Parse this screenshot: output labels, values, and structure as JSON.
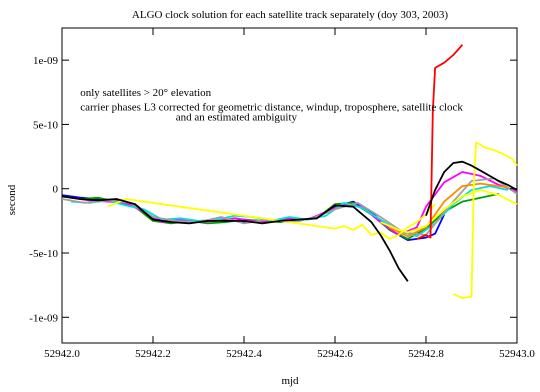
{
  "chart_data": {
    "type": "line",
    "title": "ALGO clock solution for each satellite track separately (doy 303, 2003)",
    "xlabel": "mjd",
    "ylabel": "second",
    "xlim": [
      52942.0,
      52943.0
    ],
    "ylim": [
      -1.2e-09,
      1.25e-09
    ],
    "x_ticks": [
      {
        "value": 52942.0,
        "label": "52942.0"
      },
      {
        "value": 52942.2,
        "label": "52942.2"
      },
      {
        "value": 52942.4,
        "label": "52942.4"
      },
      {
        "value": 52942.6,
        "label": "52942.6"
      },
      {
        "value": 52942.8,
        "label": "52942.8"
      },
      {
        "value": 52943.0,
        "label": "52943.0"
      }
    ],
    "y_ticks": [
      {
        "value": 1e-09,
        "label": "1e-09"
      },
      {
        "value": 5e-10,
        "label": "5e-10"
      },
      {
        "value": 0,
        "label": "0"
      },
      {
        "value": -5e-10,
        "label": "-5e-10"
      },
      {
        "value": -1e-09,
        "label": "-1e-09"
      }
    ],
    "annotations": [
      {
        "text": "only satellites > 20° elevation",
        "x": 52942.04,
        "y": 7.2e-10
      },
      {
        "text": "carrier phases L3 corrected for geometric distance, windup, troposphere, satellite clock",
        "x": 52942.04,
        "y": 6.1e-10
      },
      {
        "text": "and an estimated ambiguity",
        "x": 52942.25,
        "y": 5.3e-10
      }
    ],
    "series": [
      {
        "color": "#0000ff",
        "x": [
          52942.0,
          52942.04,
          52942.08,
          52942.12,
          52942.16,
          52942.2,
          52942.24,
          52942.28,
          52942.32,
          52942.36,
          52942.4,
          52942.44,
          52942.48,
          52942.52,
          52942.56,
          52942.6,
          52942.64,
          52942.68,
          52942.72,
          52942.76,
          52942.8,
          52942.82,
          52942.84
        ],
        "y": [
          -5e-11,
          -7e-11,
          -8e-11,
          -9e-11,
          -1.2e-10,
          -2.3e-10,
          -2.5e-10,
          -2.6e-10,
          -2.5e-10,
          -2.4e-10,
          -2.6e-10,
          -2.5e-10,
          -2.4e-10,
          -2.5e-10,
          -2.2e-10,
          -1.4e-10,
          -1e-10,
          -1.8e-10,
          -3.2e-10,
          -4e-10,
          -3.8e-10,
          -3.5e-10,
          -2e-10
        ]
      },
      {
        "color": "#00a000",
        "x": [
          52942.0,
          52942.04,
          52942.08,
          52942.12,
          52942.16,
          52942.2,
          52942.24,
          52942.28,
          52942.32,
          52942.36,
          52942.4,
          52942.44,
          52942.48,
          52942.52,
          52942.56,
          52942.6,
          52942.64,
          52942.68,
          52942.72,
          52942.76,
          52942.8,
          52942.84,
          52942.88,
          52942.92,
          52942.96
        ],
        "y": [
          -6e-11,
          -8e-11,
          -7e-11,
          -1e-10,
          -1.4e-10,
          -2.5e-10,
          -2.7e-10,
          -2.5e-10,
          -2.7e-10,
          -2.6e-10,
          -2.4e-10,
          -2.5e-10,
          -2.6e-10,
          -2.4e-10,
          -2.3e-10,
          -1.2e-10,
          -1.1e-10,
          -2e-10,
          -3.2e-10,
          -3.9e-10,
          -3.1e-10,
          -1.8e-10,
          -1e-10,
          -7e-11,
          -4e-11
        ]
      },
      {
        "color": "#ff00ff",
        "x": [
          52942.02,
          52942.06,
          52942.1,
          52942.14,
          52942.18,
          52942.22,
          52942.26,
          52942.3,
          52942.34,
          52942.38,
          52942.42,
          52942.46,
          52942.5,
          52942.54,
          52942.58,
          52942.62,
          52942.66,
          52942.7,
          52942.74,
          52942.78,
          52942.8,
          52942.84,
          52942.88,
          52942.92,
          52942.96,
          52943.0
        ],
        "y": [
          -7e-11,
          -9e-11,
          -1e-10,
          -1.1e-10,
          -1.8e-10,
          -2.6e-10,
          -2.4e-10,
          -2.6e-10,
          -2.5e-10,
          -2.3e-10,
          -2.5e-10,
          -2.6e-10,
          -2.3e-10,
          -2.4e-10,
          -1.8e-10,
          -1.2e-10,
          -1.4e-10,
          -2.6e-10,
          -3.6e-10,
          -3e-10,
          -1.4e-10,
          5e-11,
          1.3e-10,
          1e-10,
          3e-11,
          -2e-11
        ]
      },
      {
        "color": "#00e0e0",
        "x": [
          52942.02,
          52942.06,
          52942.1,
          52942.14,
          52942.18,
          52942.22,
          52942.26,
          52942.3,
          52942.34,
          52942.38,
          52942.42,
          52942.46,
          52942.5,
          52942.54,
          52942.58,
          52942.62,
          52942.66,
          52942.7,
          52942.74,
          52942.78,
          52942.82,
          52942.86,
          52942.9,
          52942.94,
          52942.98
        ],
        "y": [
          -1e-10,
          -1.1e-10,
          -9e-11,
          -1.3e-10,
          -1.6e-10,
          -2.4e-10,
          -2.3e-10,
          -2.5e-10,
          -2.4e-10,
          -2.1e-10,
          -2.2e-10,
          -2.5e-10,
          -2.2e-10,
          -2.4e-10,
          -2.1e-10,
          -1.1e-10,
          -1.5e-10,
          -2.4e-10,
          -3.3e-10,
          -3.7e-10,
          -2.7e-10,
          -1.2e-10,
          -1e-11,
          2e-11,
          -1e-11
        ]
      },
      {
        "color": "#a0a0a0",
        "x": [
          52942.0,
          52942.05,
          52942.1,
          52942.15,
          52942.2,
          52942.25,
          52942.3,
          52942.35,
          52942.4,
          52942.45,
          52942.5,
          52942.55,
          52942.6,
          52942.65,
          52942.7,
          52942.75,
          52942.8,
          52942.85,
          52942.9,
          52942.95,
          52943.0
        ],
        "y": [
          -8e-11,
          -1.1e-10,
          -9e-11,
          -1.1e-10,
          -2.2e-10,
          -2.5e-10,
          -2.6e-10,
          -2.2e-10,
          -2.7e-10,
          -2.4e-10,
          -2.6e-10,
          -2.3e-10,
          -1.6e-10,
          -1.1e-10,
          -2.2e-10,
          -3.4e-10,
          -3.6e-10,
          -1.4e-10,
          6e-11,
          8e-11,
          -4e-11
        ]
      },
      {
        "color": "#ff8c00",
        "x": [
          52942.72,
          52942.76,
          52942.8,
          52942.84,
          52942.88,
          52942.92,
          52942.96,
          52942.98
        ],
        "y": [
          -3e-10,
          -3.7e-10,
          -3e-10,
          -1e-10,
          2e-11,
          4e-11,
          2e-11,
          1e-11
        ]
      },
      {
        "color": "#ffff00",
        "x": [
          52942.1,
          52942.12,
          52942.14,
          52942.6,
          52942.62,
          52942.64,
          52942.66,
          52942.68,
          52942.7,
          52942.72,
          52942.74,
          52942.76,
          52942.78,
          52942.8,
          52942.82
        ],
        "y": [
          -1.4e-10,
          -1.1e-10,
          -8e-11,
          -3.1e-10,
          -2.9e-10,
          -3.2e-10,
          -2.8e-10,
          -3.6e-10,
          -3.4e-10,
          -3.9e-10,
          -3.6e-10,
          -3e-10,
          -2.6e-10,
          -2e-10,
          -1.2e-10
        ]
      },
      {
        "color": "#ffff00",
        "x": [
          52942.86,
          52942.88,
          52942.9,
          52942.905,
          52942.91,
          52942.93,
          52942.95,
          52942.97,
          52942.99,
          52943.0
        ],
        "y": [
          -8.2e-10,
          -8.5e-10,
          -8.4e-10,
          3e-11,
          3.6e-10,
          3.2e-10,
          3e-10,
          2.7e-10,
          2.3e-10,
          1.8e-10
        ]
      },
      {
        "color": "#ffff00",
        "x": [
          52942.7,
          52942.72,
          52942.74,
          52942.76,
          52942.8,
          52942.84,
          52942.88,
          52942.92,
          52942.96,
          52943.0
        ],
        "y": [
          -2.6e-10,
          -2.9e-10,
          -3.2e-10,
          -3.4e-10,
          -2.9e-10,
          -1.6e-10,
          -6e-11,
          -1e-11,
          -5e-11,
          -1.2e-10
        ]
      },
      {
        "color": "#ff0000",
        "x": [
          52942.78,
          52942.8,
          52942.81,
          52942.815,
          52942.82,
          52942.84,
          52942.86,
          52942.87,
          52942.88
        ],
        "y": [
          -3.9e-10,
          -3.6e-10,
          -3.8e-10,
          6e-10,
          9.4e-10,
          9.8e-10,
          1.04e-09,
          1.08e-09,
          1.12e-09
        ]
      },
      {
        "color": "#000000",
        "x": [
          52942.0,
          52942.04,
          52942.08,
          52942.12,
          52942.16,
          52942.2,
          52942.24,
          52942.28,
          52942.32,
          52942.36,
          52942.4,
          52942.44,
          52942.48,
          52942.52,
          52942.56,
          52942.6,
          52942.64,
          52942.68,
          52942.7,
          52942.72,
          52942.74,
          52942.76
        ],
        "y": [
          -6e-11,
          -8e-11,
          -9e-11,
          -8e-11,
          -1.2e-10,
          -2.4e-10,
          -2.6e-10,
          -2.7e-10,
          -2.5e-10,
          -2.5e-10,
          -2.5e-10,
          -2.7e-10,
          -2.5e-10,
          -2.4e-10,
          -2.3e-10,
          -1.3e-10,
          -1.4e-10,
          -2.6e-10,
          -3.6e-10,
          -4.8e-10,
          -6.2e-10,
          -7.2e-10
        ]
      },
      {
        "color": "#000000",
        "x": [
          52942.8,
          52942.82,
          52942.84,
          52942.86,
          52942.88,
          52942.9,
          52942.92,
          52942.94,
          52942.96,
          52942.98,
          52943.0
        ],
        "y": [
          -2.1e-10,
          -1e-11,
          1.3e-10,
          2e-10,
          2.1e-10,
          1.8e-10,
          1.4e-10,
          1e-10,
          6e-11,
          3e-11,
          -1e-11
        ]
      }
    ]
  }
}
